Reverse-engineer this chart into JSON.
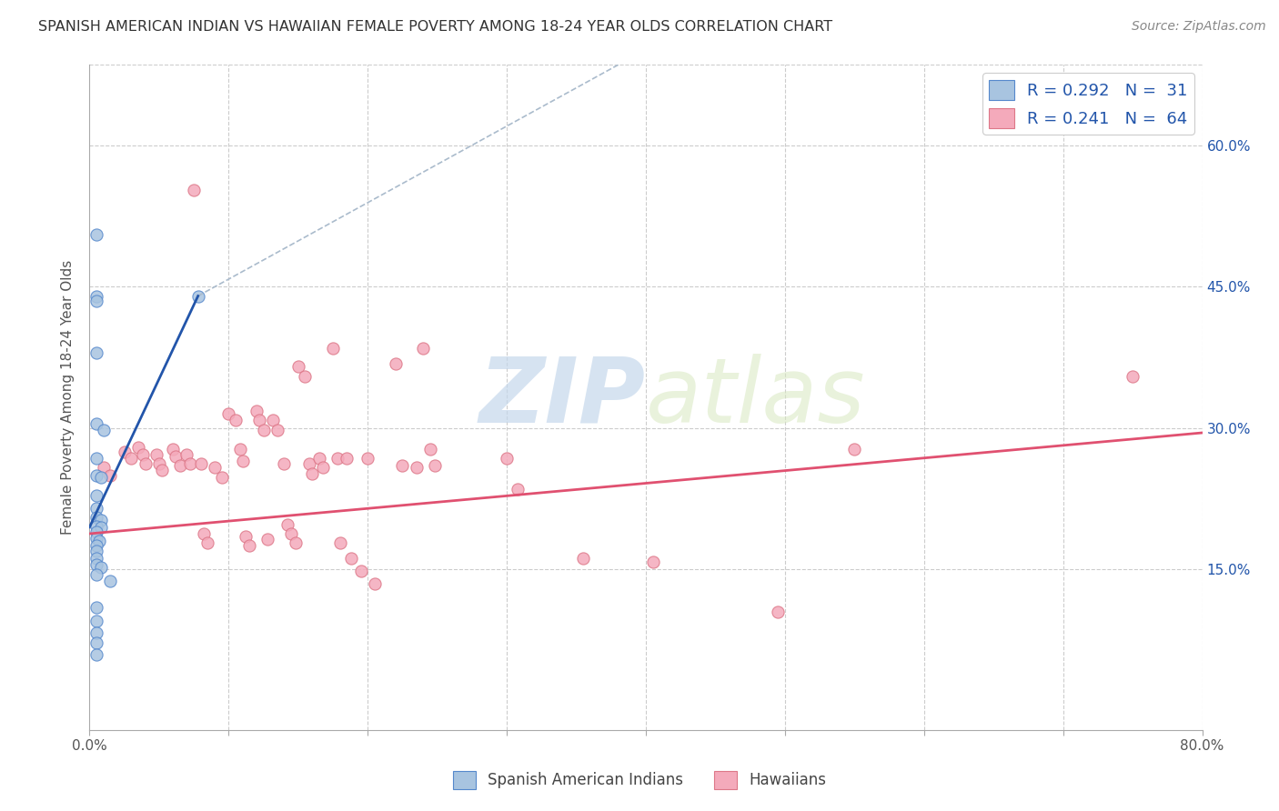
{
  "title": "SPANISH AMERICAN INDIAN VS HAWAIIAN FEMALE POVERTY AMONG 18-24 YEAR OLDS CORRELATION CHART",
  "source": "Source: ZipAtlas.com",
  "ylabel": "Female Poverty Among 18-24 Year Olds",
  "watermark_zip": "ZIP",
  "watermark_atlas": "atlas",
  "xlim": [
    0.0,
    0.8
  ],
  "ylim": [
    -0.02,
    0.685
  ],
  "yticks": [
    0.0,
    0.15,
    0.3,
    0.45,
    0.6
  ],
  "ytick_labels": [
    "",
    "15.0%",
    "30.0%",
    "45.0%",
    "60.0%"
  ],
  "xticks": [
    0.0,
    0.1,
    0.2,
    0.3,
    0.4,
    0.5,
    0.6,
    0.7,
    0.8
  ],
  "blue_color": "#A8C4E0",
  "pink_color": "#F4AABB",
  "blue_line_color": "#2255AA",
  "pink_line_color": "#E05070",
  "blue_edge_color": "#5588CC",
  "pink_edge_color": "#DD7788",
  "blue_scatter": [
    [
      0.005,
      0.505
    ],
    [
      0.005,
      0.44
    ],
    [
      0.005,
      0.435
    ],
    [
      0.005,
      0.38
    ],
    [
      0.005,
      0.305
    ],
    [
      0.01,
      0.298
    ],
    [
      0.005,
      0.268
    ],
    [
      0.005,
      0.25
    ],
    [
      0.008,
      0.248
    ],
    [
      0.005,
      0.228
    ],
    [
      0.005,
      0.215
    ],
    [
      0.005,
      0.205
    ],
    [
      0.008,
      0.202
    ],
    [
      0.005,
      0.196
    ],
    [
      0.008,
      0.195
    ],
    [
      0.005,
      0.19
    ],
    [
      0.005,
      0.183
    ],
    [
      0.007,
      0.18
    ],
    [
      0.005,
      0.175
    ],
    [
      0.005,
      0.17
    ],
    [
      0.005,
      0.162
    ],
    [
      0.005,
      0.155
    ],
    [
      0.008,
      0.152
    ],
    [
      0.005,
      0.145
    ],
    [
      0.015,
      0.138
    ],
    [
      0.005,
      0.11
    ],
    [
      0.005,
      0.095
    ],
    [
      0.005,
      0.083
    ],
    [
      0.005,
      0.072
    ],
    [
      0.005,
      0.06
    ],
    [
      0.078,
      0.44
    ]
  ],
  "pink_scatter": [
    [
      0.075,
      0.552
    ],
    [
      0.01,
      0.258
    ],
    [
      0.015,
      0.25
    ],
    [
      0.025,
      0.275
    ],
    [
      0.03,
      0.268
    ],
    [
      0.035,
      0.28
    ],
    [
      0.038,
      0.272
    ],
    [
      0.04,
      0.262
    ],
    [
      0.048,
      0.272
    ],
    [
      0.05,
      0.262
    ],
    [
      0.052,
      0.255
    ],
    [
      0.06,
      0.278
    ],
    [
      0.062,
      0.27
    ],
    [
      0.065,
      0.26
    ],
    [
      0.07,
      0.272
    ],
    [
      0.072,
      0.262
    ],
    [
      0.08,
      0.262
    ],
    [
      0.082,
      0.188
    ],
    [
      0.085,
      0.178
    ],
    [
      0.09,
      0.258
    ],
    [
      0.095,
      0.248
    ],
    [
      0.1,
      0.315
    ],
    [
      0.105,
      0.308
    ],
    [
      0.108,
      0.278
    ],
    [
      0.11,
      0.265
    ],
    [
      0.112,
      0.185
    ],
    [
      0.115,
      0.175
    ],
    [
      0.12,
      0.318
    ],
    [
      0.122,
      0.308
    ],
    [
      0.125,
      0.298
    ],
    [
      0.128,
      0.182
    ],
    [
      0.132,
      0.308
    ],
    [
      0.135,
      0.298
    ],
    [
      0.14,
      0.262
    ],
    [
      0.142,
      0.198
    ],
    [
      0.145,
      0.188
    ],
    [
      0.148,
      0.178
    ],
    [
      0.15,
      0.365
    ],
    [
      0.155,
      0.355
    ],
    [
      0.158,
      0.262
    ],
    [
      0.16,
      0.252
    ],
    [
      0.165,
      0.268
    ],
    [
      0.168,
      0.258
    ],
    [
      0.175,
      0.385
    ],
    [
      0.178,
      0.268
    ],
    [
      0.18,
      0.178
    ],
    [
      0.185,
      0.268
    ],
    [
      0.188,
      0.162
    ],
    [
      0.195,
      0.148
    ],
    [
      0.2,
      0.268
    ],
    [
      0.205,
      0.135
    ],
    [
      0.22,
      0.368
    ],
    [
      0.225,
      0.26
    ],
    [
      0.235,
      0.258
    ],
    [
      0.24,
      0.385
    ],
    [
      0.245,
      0.278
    ],
    [
      0.248,
      0.26
    ],
    [
      0.3,
      0.268
    ],
    [
      0.308,
      0.235
    ],
    [
      0.355,
      0.162
    ],
    [
      0.405,
      0.158
    ],
    [
      0.495,
      0.105
    ],
    [
      0.55,
      0.278
    ],
    [
      0.75,
      0.355
    ]
  ],
  "blue_line": [
    [
      0.0,
      0.195
    ],
    [
      0.078,
      0.44
    ]
  ],
  "blue_dashed_line": [
    [
      0.078,
      0.44
    ],
    [
      0.38,
      0.685
    ]
  ],
  "pink_line": [
    [
      0.0,
      0.188
    ],
    [
      0.8,
      0.295
    ]
  ],
  "grid_color": "#CCCCCC",
  "bg_color": "#FFFFFF",
  "marker_size": 90
}
